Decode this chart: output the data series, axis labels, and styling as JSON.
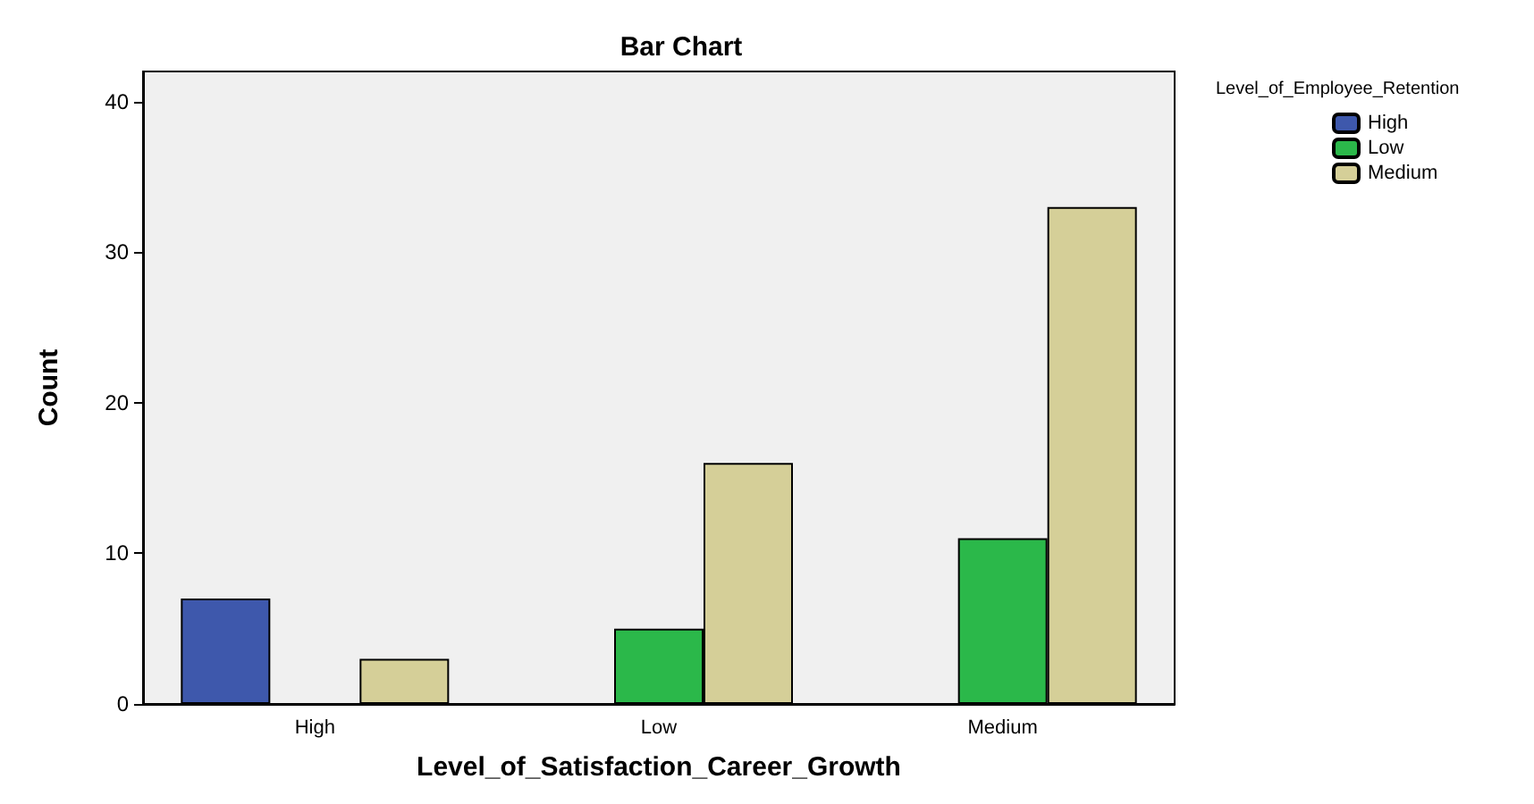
{
  "chart_data": {
    "type": "bar",
    "title": "Bar Chart",
    "xlabel": "Level_of_Satisfaction_Career_Growth",
    "ylabel": "Count",
    "legend_title": "Level_of_Employee_Retention",
    "categories": [
      "High",
      "Low",
      "Medium"
    ],
    "series": [
      {
        "name": "High",
        "color": "#3e58ac",
        "values": [
          7,
          null,
          null
        ]
      },
      {
        "name": "Low",
        "color": "#2bb84a",
        "values": [
          null,
          5,
          11
        ]
      },
      {
        "name": "Medium",
        "color": "#d5cf98",
        "values": [
          3,
          16,
          33
        ]
      }
    ],
    "ylim": [
      0,
      42
    ],
    "yticks": [
      0,
      10,
      20,
      30,
      40
    ],
    "grid": false,
    "legend": "top right"
  }
}
